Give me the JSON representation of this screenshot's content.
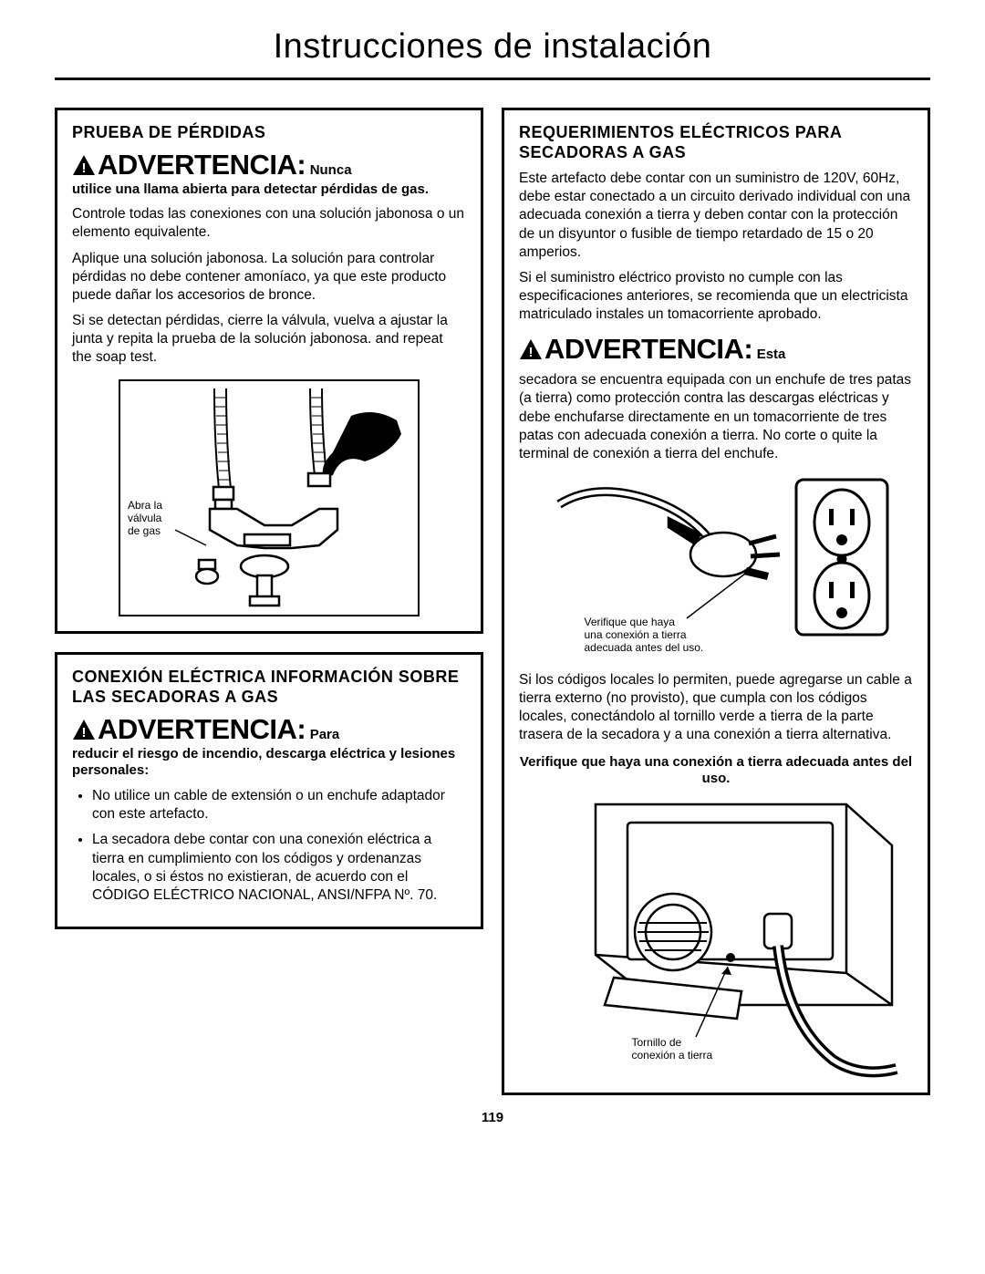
{
  "page": {
    "title": "Instrucciones de instalación",
    "number": "119"
  },
  "left": {
    "panel1": {
      "heading": "PRUEBA DE PÉRDIDAS",
      "warn_word": "ADVERTENCIA:",
      "warn_tail": "Nunca",
      "warn_cont": "utilice una llama abierta para detectar pérdidas de gas.",
      "p1": "Controle todas las conexiones con una solución jabonosa o un elemento equivalente.",
      "p2": "Aplique una solución jabonosa. La solución para controlar pérdidas no debe contener amoníaco, ya que este producto puede dañar los accesorios de bronce.",
      "p3": "Si se detectan pérdidas, cierre la válvula, vuelva a ajustar la junta y repita la prueba de la solución jabonosa. and repeat the soap test.",
      "fig_label": "Abra la\nválvula\nde gas"
    },
    "panel2": {
      "heading": "CONEXIÓN ELÉCTRICA INFORMACIÓN SOBRE LAS SECADORAS A GAS",
      "warn_word": "ADVERTENCIA:",
      "warn_tail": "Para",
      "warn_cont": "reducir el riesgo de incendio, descarga eléctrica y lesiones personales:",
      "b1": "No utilice un cable de extensión o un enchufe adaptador con este artefacto.",
      "b2": "La secadora debe contar con una conexión eléctrica a tierra en cumplimiento con los códigos y ordenanzas locales, o si éstos no existieran, de acuerdo con el CÓDIGO ELÉCTRICO NACIONAL, ANSI/NFPA Nº. 70."
    }
  },
  "right": {
    "heading": "REQUERIMIENTOS ELÉCTRICOS PARA SECADORAS A GAS",
    "p1": "Este artefacto debe contar con un suministro de 120V, 60Hz, debe estar conectado a un circuito derivado individual con una adecuada conexión a tierra y deben contar con la protección de un disyuntor o fusible de tiempo retardado de 15 o 20 amperios.",
    "p2": "Si el suministro eléctrico provisto no cumple con las especificaciones anteriores, se recomienda que un electricista matriculado instales un tomacorriente aprobado.",
    "warn_word": "ADVERTENCIA:",
    "warn_tail": "Esta",
    "warn_cont": "secadora se encuentra equipada con un enchufe de tres patas (a tierra) como protección contra las descargas eléctricas y debe enchufarse directamente en un tomacorriente de tres patas con adecuada conexión a tierra. No corte o quite la terminal de conexión a tierra del enchufe.",
    "fig1_label": "Verifique que haya\nuna conexión a tierra\nadecuada antes del uso.",
    "p3": "Si los códigos locales lo permiten, puede agregarse un cable a tierra externo (no provisto), que cumpla con los códigos locales, conectándolo al tornillo verde a tierra de la parte trasera de la secadora y a una conexión a tierra alternativa.",
    "center_bold": "Verifique que haya una conexión a tierra adecuada antes del uso.",
    "fig2_label": "Tornillo de\nconexión a tierra"
  }
}
